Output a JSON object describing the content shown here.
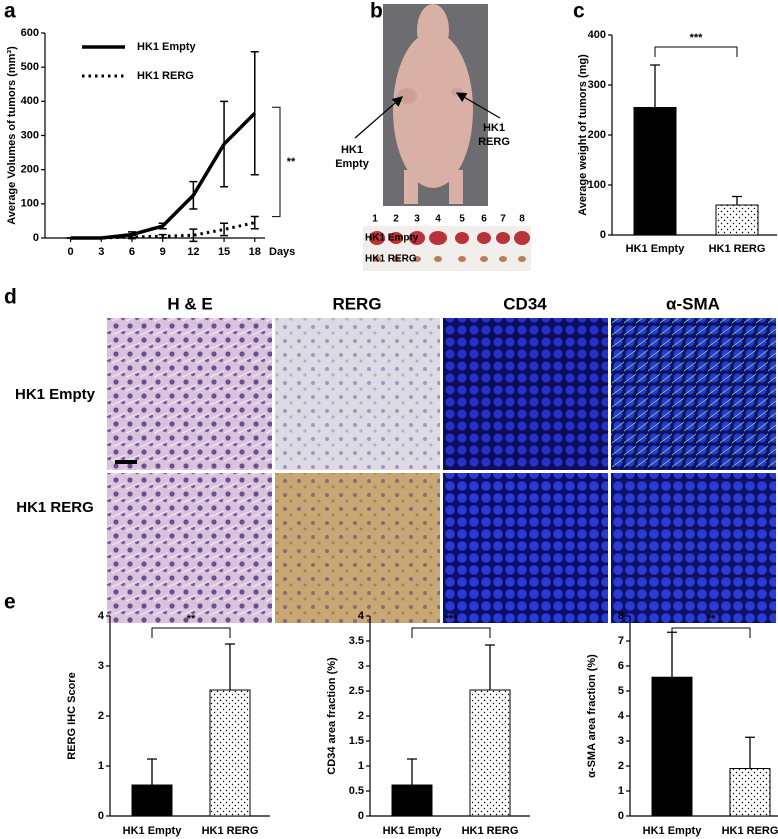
{
  "panel_labels": [
    "a",
    "b",
    "c",
    "d",
    "e"
  ],
  "photo": {
    "callouts": [
      [
        "HK1",
        "Empty"
      ],
      [
        "HK1",
        "RERG"
      ]
    ],
    "tumor_numbers": [
      "1",
      "2",
      "3",
      "4",
      "5",
      "6",
      "7",
      "8"
    ],
    "row_labels": [
      "HK1 Empty",
      "HK1 RERG"
    ]
  },
  "histology": {
    "columns": [
      "H & E",
      "RERG",
      "CD34",
      "α-SMA"
    ],
    "rows": [
      "HK1 Empty",
      "HK1 RERG"
    ]
  },
  "chart_data": [
    {
      "type": "line",
      "ylabel": "Average Volumes of tumors (mm³)",
      "xlabel": "Days",
      "x": [
        0,
        3,
        6,
        9,
        12,
        15,
        18
      ],
      "xlim": [
        -2.5,
        19
      ],
      "xticks": [
        0,
        3,
        6,
        9,
        12,
        15,
        18
      ],
      "ylim": [
        0,
        600
      ],
      "yticks": [
        0,
        100,
        200,
        300,
        400,
        500,
        600
      ],
      "legend": "upper left",
      "annotation": "**",
      "series": [
        {
          "name": "HK1 Empty",
          "color": "#000000",
          "style": "solid",
          "values": [
            0,
            0,
            10,
            35,
            125,
            275,
            365
          ],
          "errors": [
            0,
            0,
            8,
            8,
            40,
            125,
            180
          ]
        },
        {
          "name": "HK1 RERG",
          "color": "#000000",
          "style": "dotted",
          "values": [
            0,
            0,
            3,
            5,
            8,
            25,
            45
          ],
          "errors": [
            0,
            0,
            5,
            5,
            18,
            18,
            18
          ]
        }
      ]
    },
    {
      "type": "bar",
      "ylabel": "Average weight of tumors (mg)",
      "categories": [
        "HK1 Empty",
        "HK1 RERG"
      ],
      "values": [
        255,
        60
      ],
      "errors": [
        85,
        17
      ],
      "color": "#000000",
      "fills": [
        "solid",
        "dotted"
      ],
      "ylim": [
        0,
        400
      ],
      "yticks": [
        0,
        100,
        200,
        300,
        400
      ],
      "annotation": "***"
    },
    {
      "type": "bar",
      "ylabel": "RERG IHC Score",
      "categories": [
        "HK1 Empty",
        "HK1 RERG"
      ],
      "values": [
        0.62,
        2.52
      ],
      "errors": [
        0.52,
        0.92
      ],
      "color": "#000000",
      "fills": [
        "solid",
        "dotted"
      ],
      "ylim": [
        0,
        4
      ],
      "yticks": [
        0,
        1,
        2,
        3,
        4
      ],
      "annotation": "**"
    },
    {
      "type": "bar",
      "ylabel": "CD34 area fraction (%)",
      "categories": [
        "HK1 Empty",
        "HK1 RERG"
      ],
      "values": [
        0.62,
        2.52
      ],
      "errors": [
        0.52,
        0.9
      ],
      "color": "#000000",
      "fills": [
        "solid",
        "dotted"
      ],
      "ylim": [
        0,
        4
      ],
      "yticks": [
        0,
        0.5,
        1,
        1.5,
        2,
        2.5,
        3,
        3.5,
        4
      ],
      "annotation": "***"
    },
    {
      "type": "bar",
      "ylabel": "α-SMA area fraction (%)",
      "categories": [
        "HK1 Empty",
        "HK1 RERG"
      ],
      "values": [
        5.55,
        1.9
      ],
      "errors": [
        1.8,
        1.25
      ],
      "color": "#000000",
      "fills": [
        "solid",
        "dotted"
      ],
      "ylim": [
        0,
        8
      ],
      "yticks": [
        0,
        1,
        2,
        3,
        4,
        5,
        6,
        7,
        8
      ],
      "annotation": "**"
    }
  ]
}
